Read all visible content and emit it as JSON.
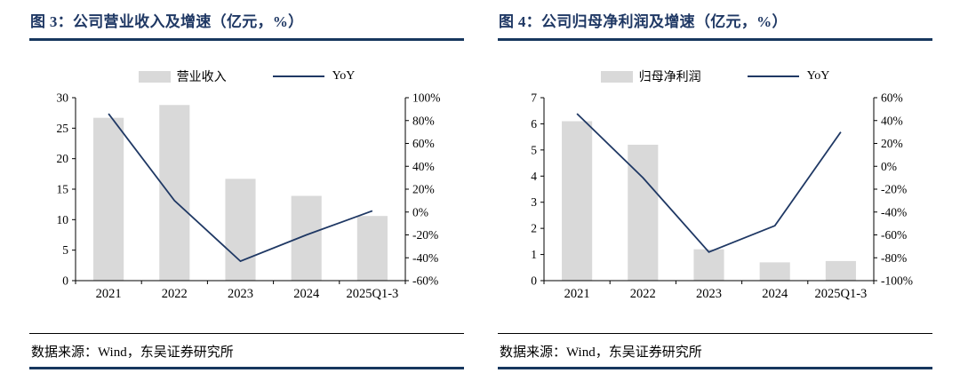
{
  "colors": {
    "accent": "#1f3864",
    "bar": "#d9d9d9",
    "axis": "#000000",
    "rule": "#17375e"
  },
  "chart_data": [
    {
      "type": "bar+line",
      "title": "图 3：公司营业收入及增速（亿元，%）",
      "categories": [
        "2021",
        "2022",
        "2023",
        "2024",
        "2025Q1-3"
      ],
      "series": [
        {
          "name": "营业收入",
          "type": "bar",
          "axis": "left",
          "values": [
            26.7,
            28.8,
            16.7,
            13.9,
            10.6
          ]
        },
        {
          "name": "YoY",
          "type": "line",
          "axis": "right",
          "values": [
            86,
            10,
            -43,
            -20,
            1
          ]
        }
      ],
      "axes": {
        "left": {
          "min": 0,
          "max": 30,
          "ticks": [
            0,
            5,
            10,
            15,
            20,
            25,
            30
          ],
          "suffix": ""
        },
        "right": {
          "min": -60,
          "max": 100,
          "ticks": [
            -60,
            -40,
            -20,
            0,
            20,
            40,
            60,
            80,
            100
          ],
          "suffix": "%"
        }
      },
      "grid": false,
      "legend_position": "top-center",
      "source": "数据来源：Wind，东吴证券研究所"
    },
    {
      "type": "bar+line",
      "title": "图 4：公司归母净利润及增速（亿元，%）",
      "categories": [
        "2021",
        "2022",
        "2023",
        "2024",
        "2025Q1-3"
      ],
      "series": [
        {
          "name": "归母净利润",
          "type": "bar",
          "axis": "left",
          "values": [
            6.1,
            5.2,
            1.2,
            0.7,
            0.75
          ]
        },
        {
          "name": "YoY",
          "type": "line",
          "axis": "right",
          "values": [
            46,
            -10,
            -75,
            -52,
            30
          ]
        }
      ],
      "axes": {
        "left": {
          "min": 0,
          "max": 7,
          "ticks": [
            0,
            1,
            2,
            3,
            4,
            5,
            6,
            7
          ],
          "suffix": ""
        },
        "right": {
          "min": -100,
          "max": 60,
          "ticks": [
            -100,
            -80,
            -60,
            -40,
            -20,
            0,
            20,
            40,
            60
          ],
          "suffix": "%"
        }
      },
      "grid": false,
      "legend_position": "top-center",
      "source": "数据来源：Wind，东吴证券研究所"
    }
  ]
}
